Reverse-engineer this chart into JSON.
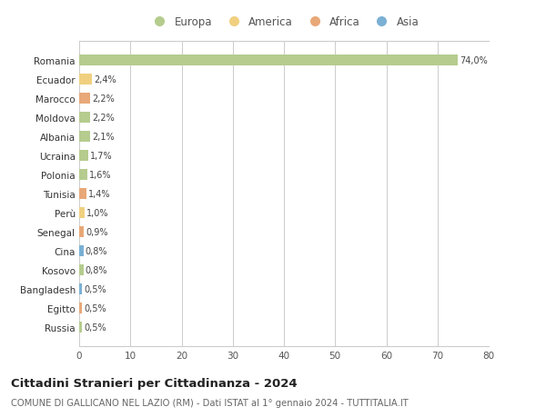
{
  "countries": [
    "Romania",
    "Ecuador",
    "Marocco",
    "Moldova",
    "Albania",
    "Ucraina",
    "Polonia",
    "Tunisia",
    "Perù",
    "Senegal",
    "Cina",
    "Kosovo",
    "Bangladesh",
    "Egitto",
    "Russia"
  ],
  "values": [
    74.0,
    2.4,
    2.2,
    2.2,
    2.1,
    1.7,
    1.6,
    1.4,
    1.0,
    0.9,
    0.8,
    0.8,
    0.5,
    0.5,
    0.5
  ],
  "labels": [
    "74,0%",
    "2,4%",
    "2,2%",
    "2,2%",
    "2,1%",
    "1,7%",
    "1,6%",
    "1,4%",
    "1,0%",
    "0,9%",
    "0,8%",
    "0,8%",
    "0,5%",
    "0,5%",
    "0,5%"
  ],
  "continents": [
    "Europa",
    "America",
    "Africa",
    "Europa",
    "Europa",
    "Europa",
    "Europa",
    "Africa",
    "America",
    "Africa",
    "Asia",
    "Europa",
    "Asia",
    "Africa",
    "Europa"
  ],
  "continent_colors": {
    "Europa": "#b5cc8e",
    "America": "#f0d080",
    "Africa": "#e8a878",
    "Asia": "#7ab0d4"
  },
  "legend_order": [
    "Europa",
    "America",
    "Africa",
    "Asia"
  ],
  "title": "Cittadini Stranieri per Cittadinanza - 2024",
  "subtitle": "COMUNE DI GALLICANO NEL LAZIO (RM) - Dati ISTAT al 1° gennaio 2024 - TUTTITALIA.IT",
  "xlim": [
    0,
    80
  ],
  "xticks": [
    0,
    10,
    20,
    30,
    40,
    50,
    60,
    70,
    80
  ],
  "bg_color": "#ffffff",
  "grid_color": "#cccccc",
  "bar_height": 0.55
}
